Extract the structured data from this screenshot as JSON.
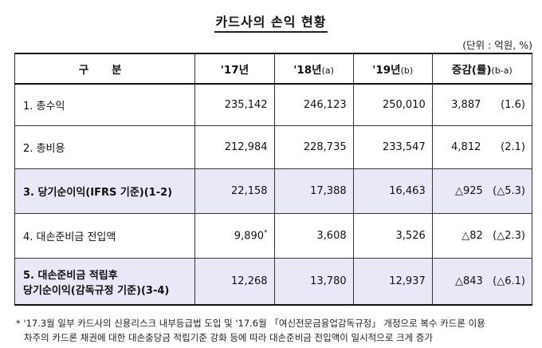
{
  "title": "카드사의 손익 현황",
  "unit": "(단위 : 억원, %)",
  "header": {
    "label": "구 분",
    "y17": "'17년",
    "y18": "'18년",
    "y18_tag": "(a)",
    "y19": "'19년",
    "y19_tag": "(b)",
    "change": "증감(률)",
    "change_tag": "(b-a)"
  },
  "rows": [
    {
      "label": "1. 총수익",
      "y17": "235,142",
      "y18": "246,123",
      "y19": "250,010",
      "diff": "3,887",
      "rate": "(1.6)"
    },
    {
      "label": "2. 총비용",
      "y17": "212,984",
      "y18": "228,735",
      "y19": "233,547",
      "diff": "4,812",
      "rate": "(2.1)"
    },
    {
      "label": "3. 당기순이익(IFRS 기준)(1-2)",
      "y17": "22,158",
      "y18": "17,388",
      "y19": "16,463",
      "diff": "△925",
      "rate": "(△5.3)"
    },
    {
      "label": "4. 대손준비금 전입액",
      "y17": "9,890",
      "y17_mark": "*",
      "y18": "3,608",
      "y19": "3,526",
      "diff": "△82",
      "rate": "(△2.3)"
    },
    {
      "label_line1": "5. 대손준비금 적립후",
      "label_line2": "당기순이익(감독규정 기준)(3-4)",
      "y17": "12,268",
      "y18": "13,780",
      "y19": "12,937",
      "diff": "△843",
      "rate": "(△6.1)"
    }
  ],
  "footnote": {
    "line1": "* '17.3월 일부 카드사의 신용리스크 내부등급법 도입 및 '17.6월 「여신전문금융업감독규정」 개정으로 복수 카드론 이용",
    "line2": "차주의 카드론 채권에 대한 대손충당금 적립기준 강화 등에 따라 대손준비금 전입액이 일시적으로 크게 증가"
  }
}
